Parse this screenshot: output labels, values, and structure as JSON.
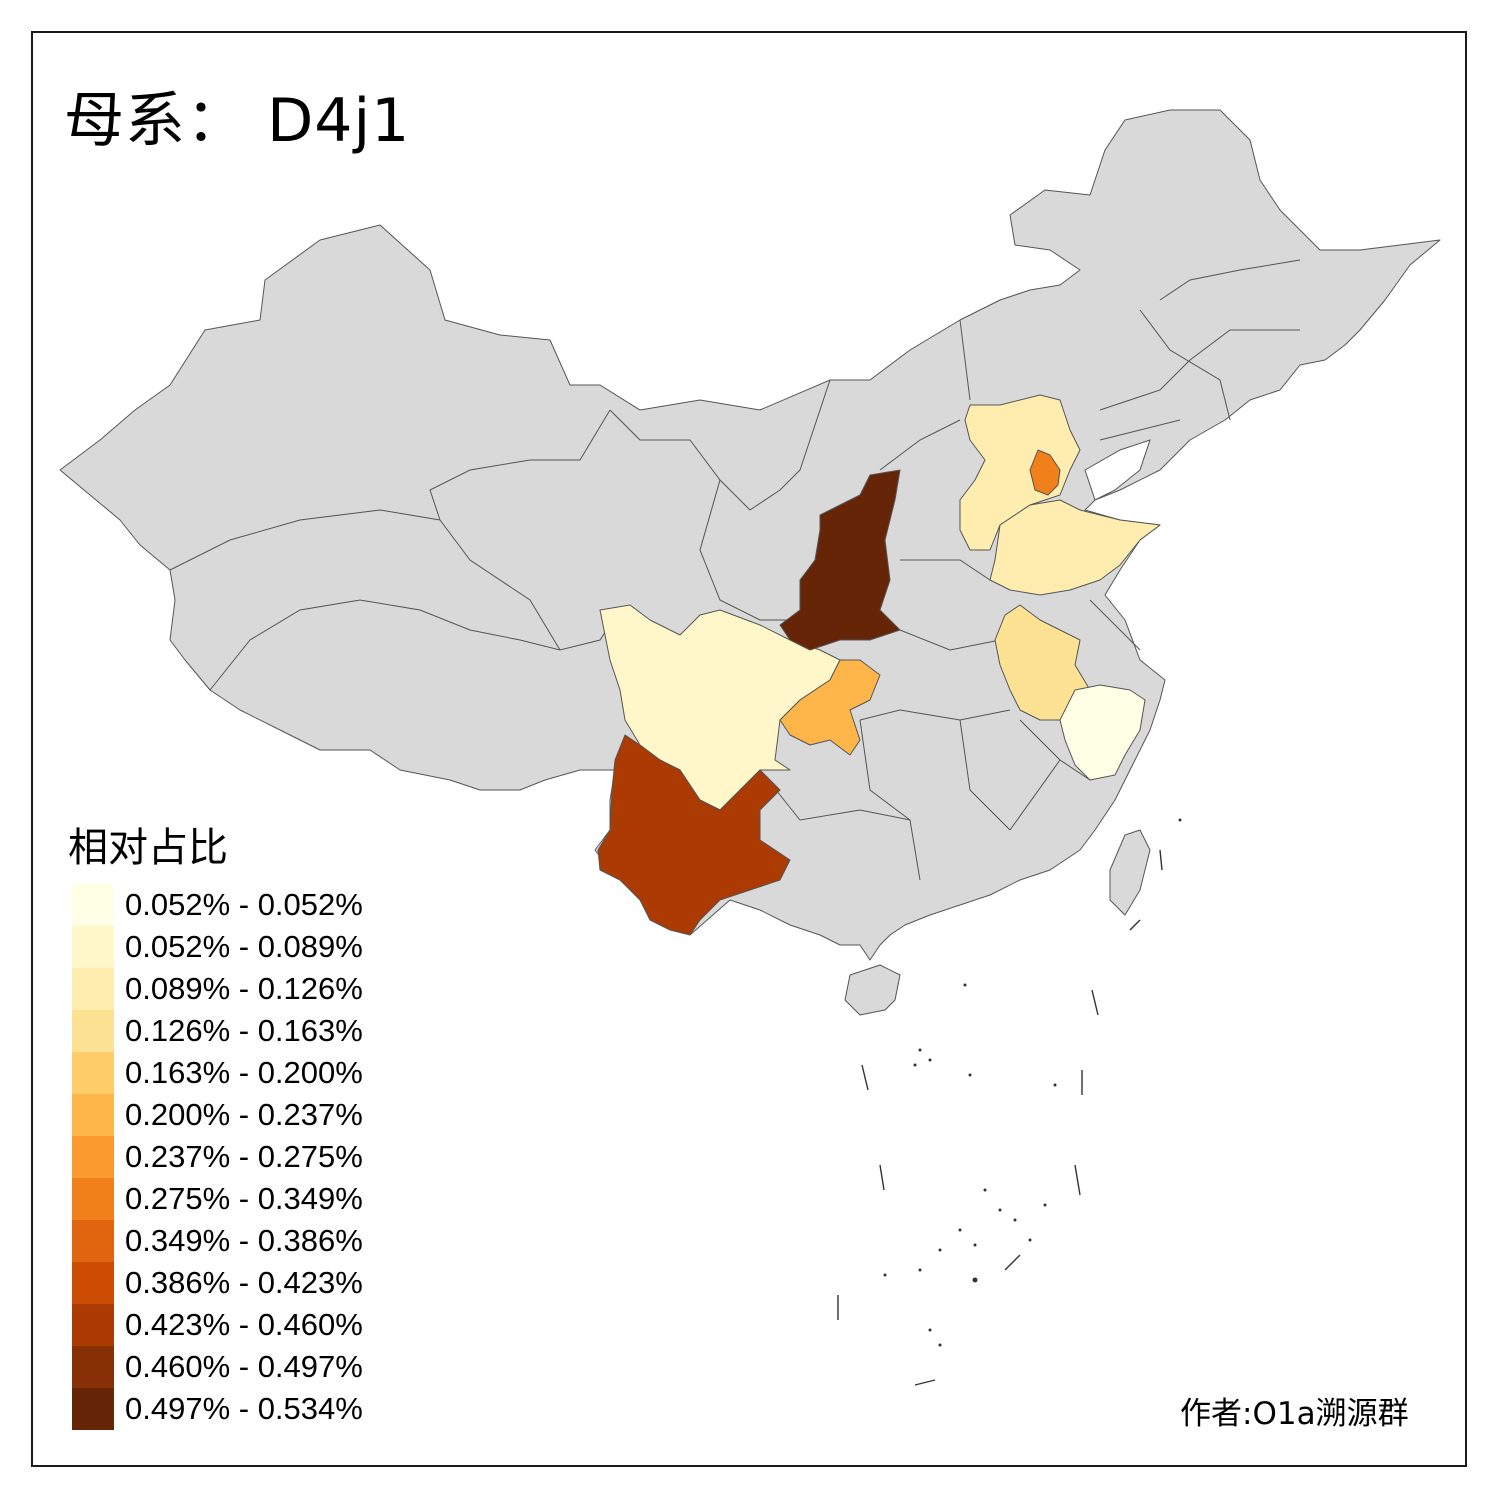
{
  "title": "母系： D4j1",
  "legend": {
    "title": "相对占比",
    "items": [
      {
        "label": "0.052% - 0.052%",
        "color": "#FFFFE5"
      },
      {
        "label": "0.052% - 0.089%",
        "color": "#FFF7C9"
      },
      {
        "label": "0.089% - 0.126%",
        "color": "#FEEDAE"
      },
      {
        "label": "0.126% - 0.163%",
        "color": "#FEE294"
      },
      {
        "label": "0.163% - 0.200%",
        "color": "#FECD6A"
      },
      {
        "label": "0.200% - 0.237%",
        "color": "#FEB549"
      },
      {
        "label": "0.237% - 0.275%",
        "color": "#FB9A2C"
      },
      {
        "label": "0.275% - 0.349%",
        "color": "#F1801B"
      },
      {
        "label": "0.349% - 0.386%",
        "color": "#E1640E"
      },
      {
        "label": "0.386% - 0.423%",
        "color": "#CD4C03"
      },
      {
        "label": "0.423% - 0.460%",
        "color": "#AC3A03"
      },
      {
        "label": "0.460% - 0.497%",
        "color": "#872F05"
      },
      {
        "label": "0.497% - 0.534%",
        "color": "#662506"
      }
    ]
  },
  "credit": "作者:O1a溯源群",
  "colors": {
    "no_data": "#D9D9D9",
    "border": "#555555",
    "frame": "#1a1a1a"
  },
  "regions": [
    {
      "name": "Shaanxi",
      "class": 12
    },
    {
      "name": "Yunnan",
      "class": 10
    },
    {
      "name": "Tianjin",
      "class": 7
    },
    {
      "name": "Chongqing",
      "class": 5
    },
    {
      "name": "Anhui",
      "class": 3
    },
    {
      "name": "Hebei",
      "class": 2
    },
    {
      "name": "Shandong",
      "class": 2
    },
    {
      "name": "Sichuan",
      "class": 1
    },
    {
      "name": "Zhejiang",
      "class": 0
    }
  ]
}
